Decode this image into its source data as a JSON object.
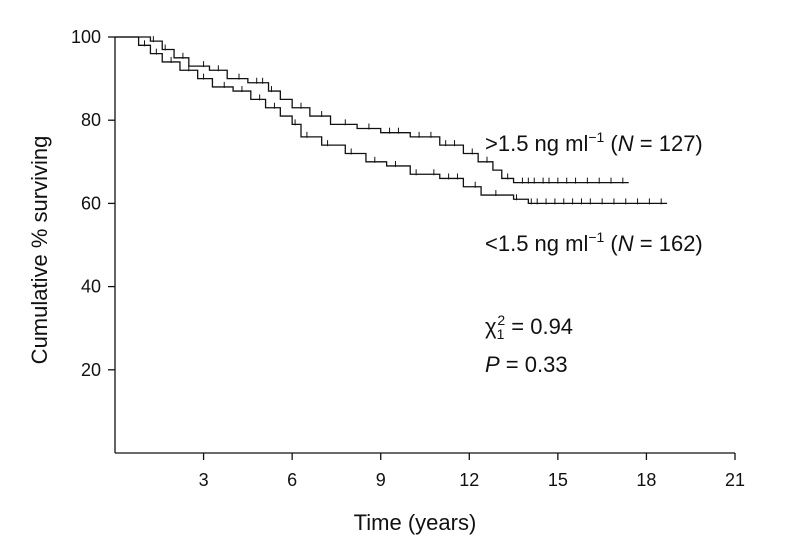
{
  "chart_data": {
    "type": "line",
    "subtype": "kaplan-meier",
    "title": "",
    "xlabel": "Time (years)",
    "ylabel": "Cumulative % surviving",
    "xlim": [
      0,
      21
    ],
    "ylim": [
      0,
      100
    ],
    "xticks": [
      3,
      6,
      9,
      12,
      15,
      18,
      21
    ],
    "yticks": [
      20,
      40,
      60,
      80,
      100
    ],
    "grid": false,
    "series": [
      {
        "name": ">1.5 ng ml−1 (N = 127)",
        "label_parts": {
          "prefix": ">1.5 ng ml",
          "exp": "−1",
          "open": " (",
          "n_symbol": "N",
          "n_value": " = 127)"
        },
        "steps": [
          [
            0,
            100
          ],
          [
            1.2,
            99
          ],
          [
            1.6,
            97
          ],
          [
            2.0,
            95
          ],
          [
            2.5,
            93
          ],
          [
            3.2,
            92
          ],
          [
            3.8,
            90
          ],
          [
            4.5,
            89
          ],
          [
            5.2,
            87
          ],
          [
            5.6,
            85
          ],
          [
            6.0,
            83
          ],
          [
            6.6,
            81
          ],
          [
            7.3,
            79
          ],
          [
            8.2,
            78
          ],
          [
            9.0,
            77
          ],
          [
            10.0,
            76
          ],
          [
            11.0,
            74
          ],
          [
            11.8,
            72
          ],
          [
            12.3,
            70
          ],
          [
            12.8,
            68
          ],
          [
            13.1,
            66
          ],
          [
            13.5,
            65
          ],
          [
            17.4,
            65
          ]
        ],
        "end_x": 17.4,
        "censor_times": [
          1.3,
          1.7,
          2.3,
          3.0,
          3.5,
          4.2,
          4.8,
          5.0,
          5.3,
          6.3,
          7.0,
          7.8,
          8.6,
          9.3,
          9.6,
          10.3,
          10.7,
          11.2,
          11.5,
          12.1,
          12.6,
          13.3,
          13.8,
          14.0,
          14.2,
          14.5,
          14.7,
          15.0,
          15.3,
          15.6,
          16.0,
          16.4,
          16.8,
          17.2
        ]
      },
      {
        "name": "<1.5 ng ml−1 (N = 162)",
        "label_parts": {
          "prefix": "<1.5 ng ml",
          "exp": "−1",
          "open": " (",
          "n_symbol": "N",
          "n_value": " = 162)"
        },
        "steps": [
          [
            0,
            100
          ],
          [
            0.8,
            98
          ],
          [
            1.2,
            96
          ],
          [
            1.6,
            94
          ],
          [
            2.2,
            92
          ],
          [
            2.8,
            90
          ],
          [
            3.3,
            88
          ],
          [
            4.0,
            87
          ],
          [
            4.6,
            85
          ],
          [
            5.1,
            83
          ],
          [
            5.6,
            81
          ],
          [
            6.0,
            79
          ],
          [
            6.3,
            76
          ],
          [
            7.0,
            74
          ],
          [
            7.8,
            72
          ],
          [
            8.5,
            70
          ],
          [
            9.2,
            69
          ],
          [
            10.0,
            67
          ],
          [
            11.0,
            66
          ],
          [
            11.8,
            64
          ],
          [
            12.4,
            62
          ],
          [
            13.5,
            61
          ],
          [
            14.0,
            60
          ],
          [
            18.7,
            60
          ]
        ],
        "end_x": 18.7,
        "censor_times": [
          1.0,
          1.4,
          1.9,
          2.5,
          3.0,
          3.7,
          4.3,
          4.9,
          5.4,
          6.1,
          6.5,
          7.2,
          8.0,
          8.8,
          9.5,
          10.2,
          10.8,
          11.3,
          11.6,
          12.2,
          12.9,
          13.6,
          14.1,
          14.3,
          14.6,
          14.9,
          15.2,
          15.5,
          15.8,
          16.1,
          16.5,
          16.9,
          17.3,
          17.7,
          18.1,
          18.5
        ]
      }
    ],
    "annotations": {
      "chi_symbol": "χ",
      "chi_df": "1",
      "chi_power": "2",
      "chi_value": " = 0.94",
      "p_symbol": "P",
      "p_value": " = 0.33"
    }
  }
}
